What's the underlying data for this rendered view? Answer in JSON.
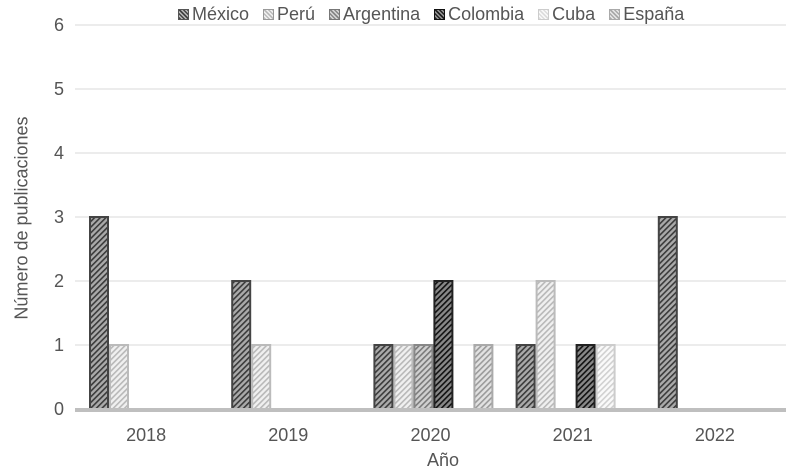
{
  "chart_data": {
    "type": "bar",
    "title": "",
    "xlabel": "Año",
    "ylabel": "Número de publicaciones",
    "ylim": [
      0,
      6
    ],
    "yticks": [
      "0",
      "1",
      "2",
      "3",
      "4",
      "5",
      "6"
    ],
    "categories": [
      "2018",
      "2019",
      "2020",
      "2021",
      "2022"
    ],
    "series": [
      {
        "name": "México",
        "values": [
          3,
          2,
          1,
          1,
          3
        ],
        "color": "#9a9a9a",
        "border": "#444444",
        "pattern": "hatch-dark"
      },
      {
        "name": "Perú",
        "values": [
          1,
          1,
          1,
          2,
          0
        ],
        "color": "#e6e6e6",
        "border": "#bbbbbb",
        "pattern": "hatch-light"
      },
      {
        "name": "Argentina",
        "values": [
          0,
          0,
          1,
          0,
          0
        ],
        "color": "#b9b9b9",
        "border": "#888888",
        "pattern": "hatch-mid"
      },
      {
        "name": "Colombia",
        "values": [
          0,
          0,
          2,
          1,
          0
        ],
        "color": "#6c6c6c",
        "border": "#222222",
        "pattern": "hatch-black"
      },
      {
        "name": "Cuba",
        "values": [
          0,
          0,
          0,
          1,
          0
        ],
        "color": "#f0f0f0",
        "border": "#cccccc",
        "pattern": "hatch-white"
      },
      {
        "name": "España",
        "values": [
          0,
          0,
          1,
          0,
          0
        ],
        "color": "#d4d4d4",
        "border": "#aaaaaa",
        "pattern": "hatch-pale"
      }
    ],
    "grid": true,
    "legend_position": "top"
  }
}
